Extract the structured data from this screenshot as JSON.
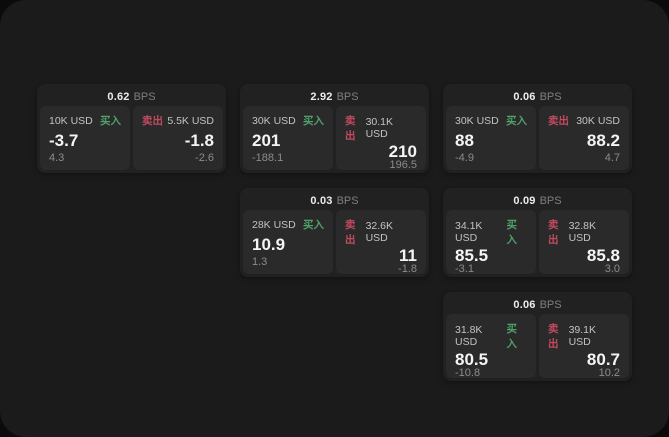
{
  "labels": {
    "bps": "BPS",
    "buy": "买入",
    "sell": "卖出"
  },
  "colors": {
    "buy_green": "#4fa169",
    "sell_red": "#c14a5f",
    "window_bg": "#1b1b1c",
    "card_bg": "#212122",
    "panel_bg": "#2a2a2b"
  },
  "cards": [
    {
      "bps": "0.62",
      "row": 1,
      "col": 1,
      "buy": {
        "size": "10K USD",
        "value": "-3.7",
        "sub": "4.3"
      },
      "sell": {
        "size": "5.5K USD",
        "value": "-1.8",
        "sub": "-2.6"
      }
    },
    {
      "bps": "2.92",
      "row": 1,
      "col": 2,
      "buy": {
        "size": "30K USD",
        "value": "201",
        "sub": "-188.1"
      },
      "sell": {
        "size": "30.1K USD",
        "value": "210",
        "sub": "196.5"
      }
    },
    {
      "bps": "0.06",
      "row": 1,
      "col": 3,
      "buy": {
        "size": "30K USD",
        "value": "88",
        "sub": "-4.9"
      },
      "sell": {
        "size": "30K USD",
        "value": "88.2",
        "sub": "4.7"
      }
    },
    {
      "bps": "0.03",
      "row": 2,
      "col": 2,
      "buy": {
        "size": "28K USD",
        "value": "10.9",
        "sub": "1.3"
      },
      "sell": {
        "size": "32.6K USD",
        "value": "11",
        "sub": "-1.8"
      }
    },
    {
      "bps": "0.09",
      "row": 2,
      "col": 3,
      "buy": {
        "size": "34.1K USD",
        "value": "85.5",
        "sub": "-3.1"
      },
      "sell": {
        "size": "32.8K USD",
        "value": "85.8",
        "sub": "3.0"
      }
    },
    {
      "bps": "0.06",
      "row": 3,
      "col": 3,
      "buy": {
        "size": "31.8K USD",
        "value": "80.5",
        "sub": "-10.8"
      },
      "sell": {
        "size": "39.1K USD",
        "value": "80.7",
        "sub": "10.2"
      }
    }
  ]
}
